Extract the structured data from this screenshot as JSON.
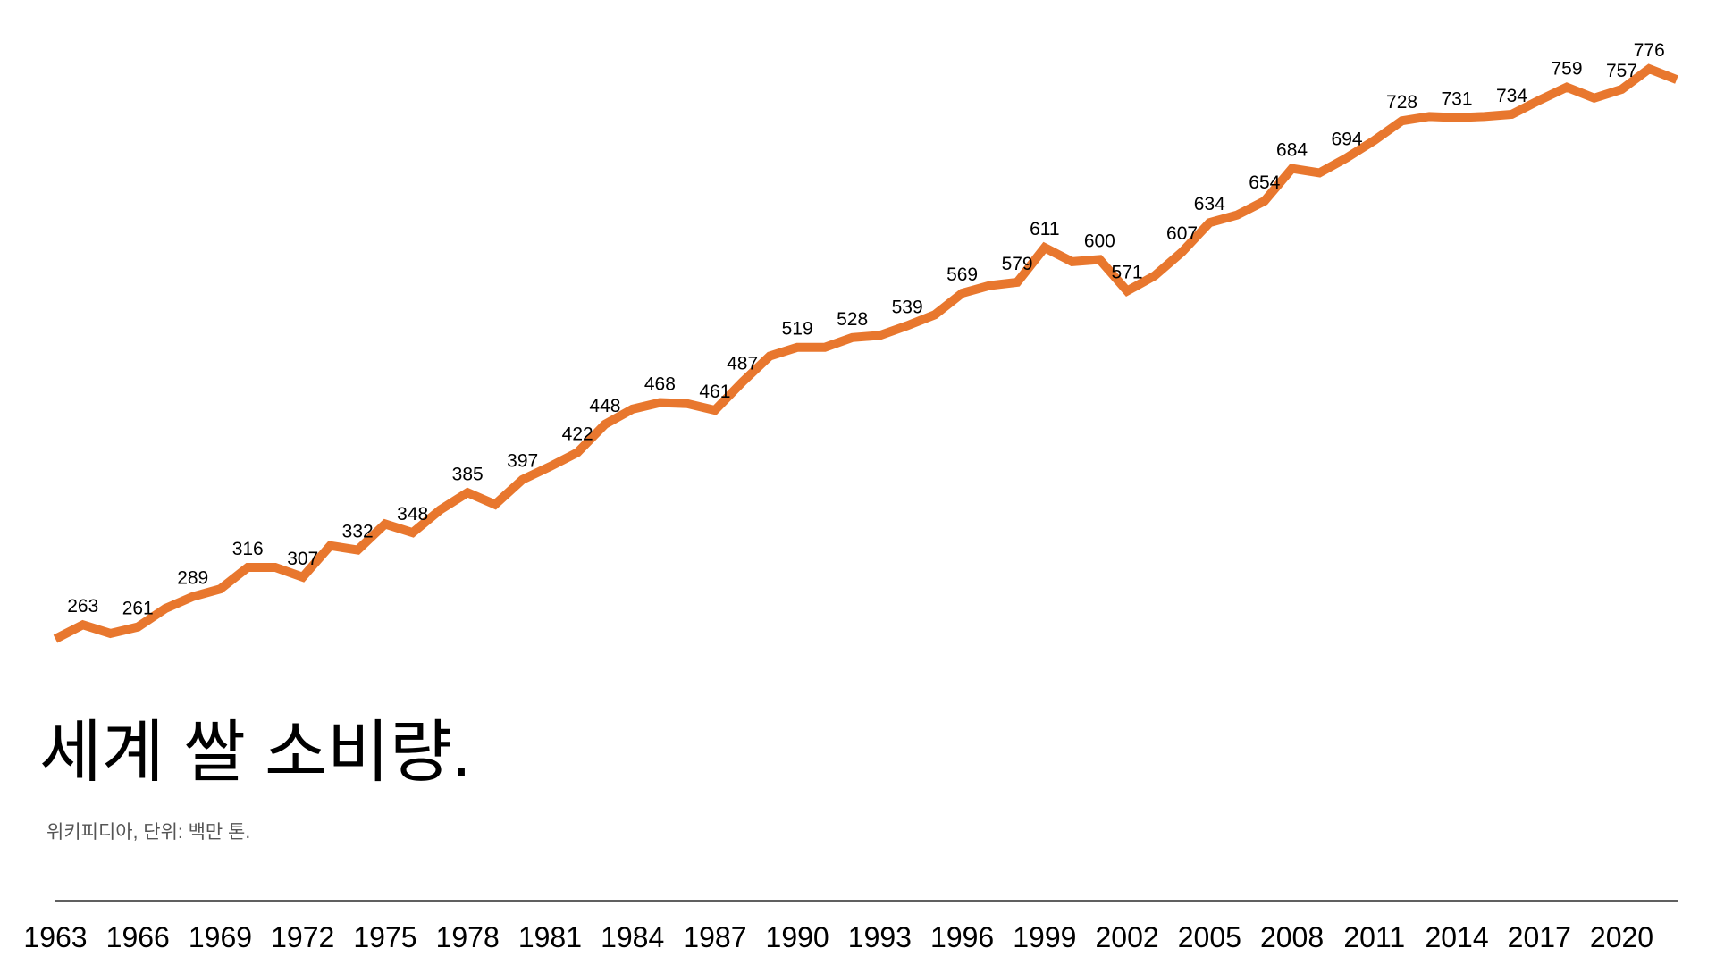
{
  "chart_data": {
    "type": "line",
    "title": "세계 쌀 소비량.",
    "subtitle": "위키피디아, 단위: 백만 톤.",
    "x": [
      1963,
      1964,
      1965,
      1966,
      1967,
      1968,
      1969,
      1970,
      1971,
      1972,
      1973,
      1974,
      1975,
      1976,
      1977,
      1978,
      1979,
      1980,
      1981,
      1982,
      1983,
      1984,
      1985,
      1986,
      1987,
      1988,
      1989,
      1990,
      1991,
      1992,
      1993,
      1994,
      1995,
      1996,
      1997,
      1998,
      1999,
      2000,
      2001,
      2002,
      2003,
      2004,
      2005,
      2006,
      2007,
      2008,
      2009,
      2010,
      2011,
      2012,
      2013,
      2014,
      2015,
      2016,
      2017,
      2018,
      2019,
      2020,
      2021,
      2022
    ],
    "xlim": [
      1963,
      2022
    ],
    "xticks": [
      1963,
      1966,
      1969,
      1972,
      1975,
      1978,
      1981,
      1984,
      1987,
      1990,
      1993,
      1996,
      1999,
      2002,
      2005,
      2008,
      2011,
      2014,
      2017,
      2020
    ],
    "series": [
      {
        "name": "쌀 소비량",
        "color": "#e8772e",
        "values": [
          250,
          263,
          255,
          261,
          278,
          289,
          296,
          316,
          316,
          307,
          336,
          332,
          356,
          348,
          369,
          385,
          374,
          397,
          409,
          422,
          448,
          462,
          468,
          467,
          461,
          487,
          511,
          519,
          519,
          528,
          530,
          539,
          549,
          569,
          576,
          579,
          611,
          598,
          600,
          571,
          585,
          607,
          634,
          641,
          654,
          684,
          680,
          694,
          710,
          728,
          732,
          731,
          732,
          734,
          747,
          759,
          749,
          757,
          776,
          766
        ],
        "value_labels": [
          null,
          "263",
          null,
          "261",
          null,
          "289",
          null,
          "316",
          null,
          "307",
          null,
          "332",
          null,
          "348",
          null,
          "385",
          null,
          "397",
          null,
          "422",
          "448",
          null,
          "468",
          null,
          "461",
          "487",
          null,
          "519",
          null,
          "528",
          null,
          "539",
          null,
          "569",
          null,
          "579",
          "611",
          null,
          "600",
          "571",
          null,
          "607",
          "634",
          null,
          "654",
          "684",
          null,
          "694",
          null,
          "728",
          null,
          "731",
          null,
          "734",
          null,
          "759",
          null,
          "757",
          "776",
          null
        ]
      }
    ]
  }
}
